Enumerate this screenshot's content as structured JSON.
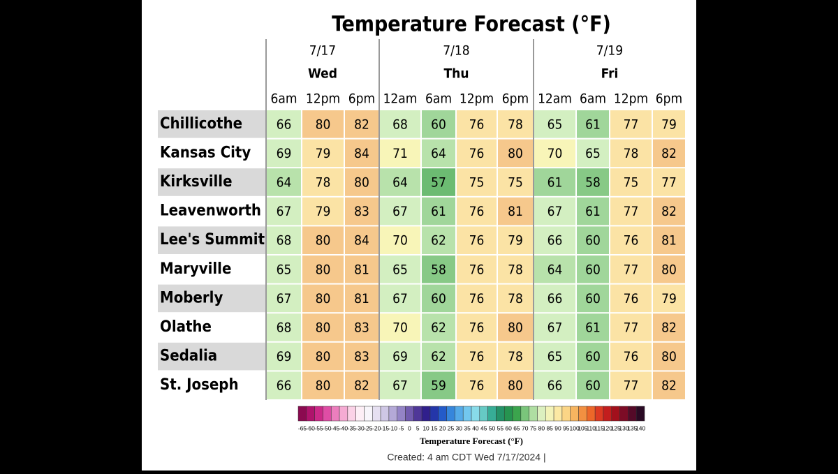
{
  "title": "Temperature Forecast (°F)",
  "days": [
    {
      "date": "7/17",
      "day": "Wed",
      "hours": [
        "6am",
        "12pm",
        "6pm"
      ]
    },
    {
      "date": "7/18",
      "day": "Thu",
      "hours": [
        "12am",
        "6am",
        "12pm",
        "6pm"
      ]
    },
    {
      "date": "7/19",
      "day": "Fri",
      "hours": [
        "12am",
        "6am",
        "12pm",
        "6pm"
      ]
    }
  ],
  "rows": [
    {
      "city": "Chillicothe",
      "temps": [
        66,
        80,
        82,
        68,
        60,
        76,
        78,
        65,
        61,
        77,
        79
      ]
    },
    {
      "city": "Kansas City",
      "temps": [
        69,
        79,
        84,
        71,
        64,
        76,
        80,
        70,
        65,
        78,
        82
      ]
    },
    {
      "city": "Kirksville",
      "temps": [
        64,
        78,
        80,
        64,
        57,
        75,
        75,
        61,
        58,
        75,
        77
      ]
    },
    {
      "city": "Leavenworth",
      "temps": [
        67,
        79,
        83,
        67,
        61,
        76,
        81,
        67,
        61,
        77,
        82
      ]
    },
    {
      "city": "Lee's Summit",
      "temps": [
        68,
        80,
        84,
        70,
        62,
        76,
        79,
        66,
        60,
        76,
        81
      ]
    },
    {
      "city": "Maryville",
      "temps": [
        65,
        80,
        81,
        65,
        58,
        76,
        78,
        64,
        60,
        77,
        80
      ]
    },
    {
      "city": "Moberly",
      "temps": [
        67,
        80,
        81,
        67,
        60,
        76,
        78,
        66,
        60,
        76,
        79
      ]
    },
    {
      "city": "Olathe",
      "temps": [
        68,
        80,
        83,
        70,
        62,
        76,
        80,
        67,
        61,
        77,
        82
      ]
    },
    {
      "city": "Sedalia",
      "temps": [
        69,
        80,
        83,
        69,
        62,
        76,
        78,
        65,
        60,
        76,
        80
      ]
    },
    {
      "city": "St. Joseph",
      "temps": [
        66,
        80,
        82,
        67,
        59,
        76,
        80,
        66,
        60,
        77,
        82
      ]
    }
  ],
  "legend": {
    "title": "Temperature Forecast (°F)",
    "labels": [
      -65,
      -60,
      -55,
      -50,
      -45,
      -40,
      -35,
      -30,
      -25,
      -20,
      -15,
      -10,
      -5,
      0,
      5,
      10,
      15,
      20,
      25,
      30,
      35,
      40,
      45,
      50,
      55,
      60,
      65,
      70,
      75,
      80,
      85,
      90,
      95,
      100,
      105,
      110,
      115,
      120,
      125,
      130,
      135,
      140
    ]
  },
  "footer": "Created: 4 am CDT Wed 7/17/2024 |"
}
